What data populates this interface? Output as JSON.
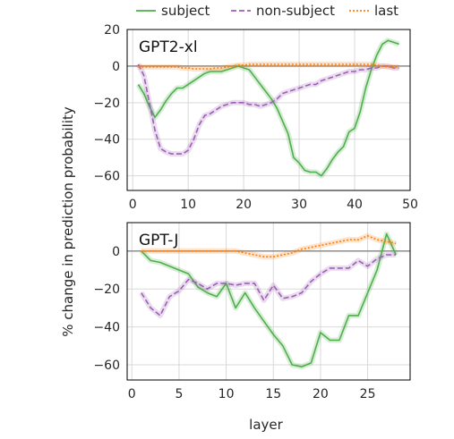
{
  "chart_data": [
    {
      "type": "line",
      "title": "GPT2-xl",
      "xlabel": "",
      "ylabel": "% change in prediction probability",
      "xlim": [
        -1,
        50
      ],
      "ylim": [
        -68,
        20
      ],
      "xticks": [
        0,
        10,
        20,
        30,
        40,
        50
      ],
      "yticks": [
        20,
        0,
        -20,
        -40,
        -60
      ],
      "grid": true,
      "series": [
        {
          "name": "subject",
          "color": "#4daf4a",
          "x": [
            1,
            2,
            3,
            4,
            5,
            6,
            7,
            8,
            9,
            10,
            11,
            12,
            13,
            14,
            15,
            16,
            17,
            18,
            19,
            20,
            21,
            22,
            23,
            24,
            25,
            26,
            27,
            28,
            29,
            30,
            31,
            32,
            33,
            34,
            35,
            36,
            37,
            38,
            39,
            40,
            41,
            42,
            43,
            44,
            45,
            46,
            47,
            48
          ],
          "y": [
            -10,
            -15,
            -22,
            -28,
            -24,
            -19,
            -15,
            -12,
            -12,
            -10,
            -8,
            -6,
            -4,
            -3,
            -3,
            -3,
            -2,
            -1,
            0,
            -1,
            -2,
            -6,
            -10,
            -14,
            -18,
            -23,
            -30,
            -37,
            -50,
            -53,
            -57,
            -58,
            -58,
            -60,
            -56,
            -51,
            -47,
            -44,
            -36,
            -34,
            -25,
            -12,
            -2,
            6,
            12,
            14,
            13,
            12
          ]
        },
        {
          "name": "non-subject",
          "color": "#9e5fb5",
          "x": [
            1,
            2,
            3,
            4,
            5,
            6,
            7,
            8,
            9,
            10,
            11,
            12,
            13,
            14,
            15,
            16,
            17,
            18,
            19,
            20,
            21,
            22,
            23,
            24,
            25,
            26,
            27,
            28,
            29,
            30,
            31,
            32,
            33,
            34,
            35,
            36,
            37,
            38,
            39,
            40,
            41,
            42,
            43,
            44,
            45,
            46,
            47,
            48
          ],
          "y": [
            1,
            -5,
            -20,
            -35,
            -45,
            -47,
            -48,
            -48,
            -48,
            -46,
            -40,
            -32,
            -27,
            -26,
            -24,
            -22,
            -21,
            -20,
            -20,
            -20,
            -21,
            -21,
            -22,
            -21,
            -20,
            -18,
            -15,
            -14,
            -13,
            -12,
            -11,
            -10,
            -10,
            -8,
            -7,
            -6,
            -5,
            -4,
            -3,
            -3,
            -2,
            -2,
            -1,
            -1,
            0,
            0,
            -1,
            -1
          ]
        },
        {
          "name": "last",
          "color": "#ff7f0e",
          "x": [
            1,
            2,
            3,
            4,
            5,
            6,
            7,
            8,
            9,
            10,
            11,
            12,
            13,
            14,
            15,
            16,
            17,
            18,
            19,
            20,
            21,
            22,
            23,
            24,
            25,
            26,
            27,
            28,
            29,
            30,
            31,
            32,
            33,
            34,
            35,
            36,
            37,
            38,
            39,
            40,
            41,
            42,
            43,
            44,
            45,
            46,
            47,
            48
          ],
          "y": [
            -0.5,
            -0.5,
            -0.5,
            -0.5,
            -0.5,
            -0.5,
            -0.5,
            -0.5,
            -1,
            -1,
            -1.5,
            -1.5,
            -1.5,
            -1.5,
            -1,
            -1,
            -0.5,
            0,
            0.5,
            0.5,
            1,
            1,
            1,
            1,
            1,
            1,
            1,
            1,
            1,
            1,
            1,
            1,
            1,
            1,
            1,
            1,
            1,
            1,
            1,
            1,
            1,
            1,
            1,
            0.5,
            0,
            -0.5,
            -0.5,
            -0.5
          ]
        }
      ]
    },
    {
      "type": "line",
      "title": "GPT-J",
      "xlabel": "layer",
      "ylabel": "% change in prediction probability",
      "xlim": [
        -0.5,
        29.5
      ],
      "ylim": [
        -68,
        15
      ],
      "xticks": [
        0,
        5,
        10,
        15,
        20,
        25
      ],
      "yticks": [
        0,
        -20,
        -40,
        -60
      ],
      "grid": true,
      "series": [
        {
          "name": "subject",
          "color": "#4daf4a",
          "x": [
            1,
            2,
            3,
            4,
            5,
            6,
            7,
            8,
            9,
            10,
            11,
            12,
            13,
            14,
            15,
            16,
            17,
            18,
            19,
            20,
            21,
            22,
            23,
            24,
            25,
            26,
            27,
            28
          ],
          "y": [
            0,
            -5,
            -6,
            -8,
            -10,
            -12,
            -19,
            -22,
            -24,
            -17,
            -30,
            -22,
            -30,
            -37,
            -44,
            -50,
            -60,
            -61,
            -59,
            -43,
            -47,
            -47,
            -34,
            -34,
            -22,
            -10,
            9,
            -2
          ]
        },
        {
          "name": "non-subject",
          "color": "#9e5fb5",
          "x": [
            1,
            2,
            3,
            4,
            5,
            6,
            7,
            8,
            9,
            10,
            11,
            12,
            13,
            14,
            15,
            16,
            17,
            18,
            19,
            20,
            21,
            22,
            23,
            24,
            25,
            26,
            27,
            28
          ],
          "y": [
            -22,
            -30,
            -34,
            -24,
            -21,
            -15,
            -17,
            -20,
            -17,
            -17,
            -18,
            -17,
            -17,
            -26,
            -18,
            -25,
            -24,
            -22,
            -16,
            -12,
            -9,
            -9,
            -9,
            -5,
            -8,
            -4,
            -2,
            -2
          ]
        },
        {
          "name": "last",
          "color": "#ff7f0e",
          "x": [
            1,
            2,
            3,
            4,
            5,
            6,
            7,
            8,
            9,
            10,
            11,
            12,
            13,
            14,
            15,
            16,
            17,
            18,
            19,
            20,
            21,
            22,
            23,
            24,
            25,
            26,
            27,
            28
          ],
          "y": [
            0,
            0,
            0,
            0,
            0,
            0,
            0,
            0,
            0,
            0,
            0,
            -1,
            -2,
            -3,
            -3,
            -2,
            -1,
            1,
            2,
            3,
            4,
            5,
            6,
            6,
            8,
            6,
            5,
            4
          ]
        }
      ]
    }
  ],
  "legend": {
    "placement": "top",
    "items": [
      {
        "label": "subject",
        "color": "#4daf4a",
        "style": "solid"
      },
      {
        "label": "non-subject",
        "color": "#9e5fb5",
        "style": "dashed"
      },
      {
        "label": "last",
        "color": "#ff7f0e",
        "style": "dotted"
      }
    ]
  },
  "colors": {
    "grid": "#d9d9d9",
    "axis": "#000000",
    "zero_line": "#8c8c8c"
  }
}
